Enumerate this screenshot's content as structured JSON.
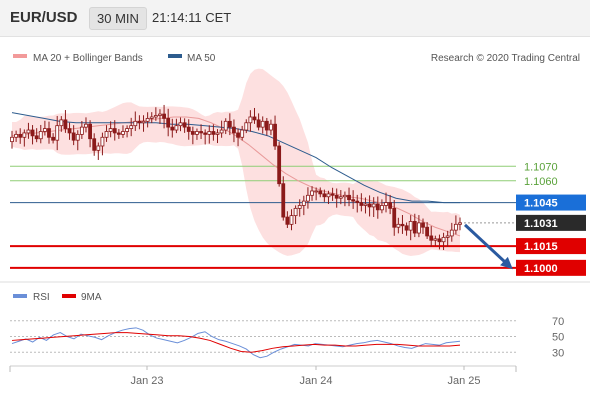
{
  "header": {
    "pair": "EUR/USD",
    "timeframe": "30 MIN",
    "time": "21:14:11 CET"
  },
  "legend": {
    "ma20": "MA 20 + Bollinger Bands",
    "ma50": "MA 50",
    "credit": "Research © 2020 Trading Central",
    "rsi": "RSI",
    "nine_ma": "9MA"
  },
  "colors": {
    "candle": "#8b1a1a",
    "bollinger_fill": "#fde0e0",
    "ma20": "#e99a9a",
    "ma50": "#2d5c8e",
    "green_level": "#8fce76",
    "red_level": "#e00000",
    "current_price": "#333333",
    "arrow": "#2a5aa0",
    "rsi": "#6a8fd8",
    "rsi_ma": "#e00000"
  },
  "chart_data": [
    {
      "type": "candlestick",
      "title": "EUR/USD",
      "timeframe": "30 MIN",
      "ylim": [
        1.0993,
        1.1135
      ],
      "x_ticks": [
        "Jan 23",
        "Jan 24",
        "Jan 25"
      ],
      "levels": [
        {
          "value": 1.107,
          "label": "1.1070",
          "kind": "resistance"
        },
        {
          "value": 1.106,
          "label": "1.1060",
          "kind": "resistance"
        },
        {
          "value": 1.1045,
          "label": "1.1045",
          "kind": "ma50"
        },
        {
          "value": 1.1031,
          "label": "1.1031",
          "kind": "current"
        },
        {
          "value": 1.1015,
          "label": "1.1015",
          "kind": "support"
        },
        {
          "value": 1.1,
          "label": "1.1000",
          "kind": "target"
        }
      ],
      "closes": [
        1.109,
        1.1092,
        1.109,
        1.1093,
        1.1095,
        1.1091,
        1.1089,
        1.1094,
        1.1096,
        1.109,
        1.1088,
        1.1098,
        1.1102,
        1.1096,
        1.1093,
        1.1088,
        1.1092,
        1.1097,
        1.1099,
        1.1089,
        1.1081,
        1.1084,
        1.109,
        1.1094,
        1.1096,
        1.1093,
        1.1092,
        1.1094,
        1.1096,
        1.1098,
        1.1101,
        1.11,
        1.1101,
        1.1103,
        1.1104,
        1.1105,
        1.1106,
        1.1103,
        1.1097,
        1.1095,
        1.1098,
        1.11,
        1.1097,
        1.1094,
        1.1092,
        1.1094,
        1.1093,
        1.1092,
        1.1094,
        1.1092,
        1.1093,
        1.1095,
        1.1101,
        1.1097,
        1.1093,
        1.109,
        1.1095,
        1.11,
        1.1104,
        1.1102,
        1.1097,
        1.1101,
        1.1095,
        1.1099,
        1.1084,
        1.1058,
        1.1035,
        1.103,
        1.1036,
        1.1041,
        1.1043,
        1.1046,
        1.105,
        1.1053,
        1.1053,
        1.1051,
        1.1049,
        1.1051,
        1.105,
        1.1048,
        1.1049,
        1.105,
        1.1047,
        1.1046,
        1.1045,
        1.1043,
        1.1044,
        1.1042,
        1.1044,
        1.104,
        1.1043,
        1.1045,
        1.1041,
        1.1028,
        1.103,
        1.1029,
        1.1026,
        1.1032,
        1.1024,
        1.1031,
        1.1028,
        1.1022,
        1.1019,
        1.102,
        1.1018,
        1.1021,
        1.1022,
        1.1026,
        1.103,
        1.1031
      ],
      "series": [
        {
          "name": "MA 20",
          "values": [
            1.1091,
            1.1092,
            1.1093,
            1.1094,
            1.1095,
            1.1096,
            1.1097,
            1.1098,
            1.1099,
            1.11,
            1.1101,
            1.1102,
            1.1103,
            1.1104,
            1.1104,
            1.1103,
            1.11,
            1.1096,
            1.1091,
            1.1085,
            1.1078,
            1.1071,
            1.1065,
            1.106,
            1.1056,
            1.1053,
            1.1051,
            1.1049,
            1.1048,
            1.1046,
            1.1044,
            1.1041,
            1.1037,
            1.1032,
            1.1028,
            1.1025,
            1.1022
          ]
        },
        {
          "name": "MA 50",
          "values": [
            1.1107,
            1.1105,
            1.1103,
            1.1101,
            1.11,
            1.11,
            1.11,
            1.11,
            1.11,
            1.11,
            1.1099,
            1.1099,
            1.1098,
            1.1097,
            1.1096,
            1.1094,
            1.1091,
            1.1086,
            1.1081,
            1.1076,
            1.1069,
            1.1063,
            1.1057,
            1.1052,
            1.1048,
            1.1046,
            1.1046,
            1.1045,
            1.1045
          ]
        }
      ]
    },
    {
      "type": "line",
      "title": "RSI",
      "ylim": [
        10,
        90
      ],
      "y_ticks": [
        30,
        50,
        70
      ],
      "x_ticks": [
        "Jan 23",
        "Jan 24",
        "Jan 25"
      ],
      "series": [
        {
          "name": "RSI",
          "values": [
            41,
            44,
            47,
            43,
            49,
            45,
            52,
            55,
            50,
            47,
            53,
            51,
            49,
            46,
            51,
            55,
            58,
            60,
            61,
            58,
            52,
            48,
            46,
            44,
            42,
            45,
            49,
            54,
            56,
            50,
            46,
            44,
            41,
            38,
            34,
            27,
            23,
            25,
            30,
            34,
            37,
            40,
            39,
            38,
            41,
            40,
            39,
            38,
            37,
            39,
            41,
            42,
            44,
            45,
            43,
            41,
            38,
            36,
            35,
            38,
            41,
            40,
            39,
            42,
            43,
            44
          ]
        },
        {
          "name": "9MA",
          "values": [
            45,
            46,
            47,
            48,
            49,
            50,
            51,
            52,
            53,
            54,
            55,
            55,
            54,
            53,
            52,
            51,
            51,
            50,
            48,
            45,
            40,
            35,
            31,
            30,
            32,
            35,
            37,
            38,
            39,
            40,
            39,
            39,
            38,
            38,
            39,
            40,
            40,
            40,
            39,
            38,
            38,
            38,
            38,
            39
          ]
        }
      ]
    }
  ]
}
